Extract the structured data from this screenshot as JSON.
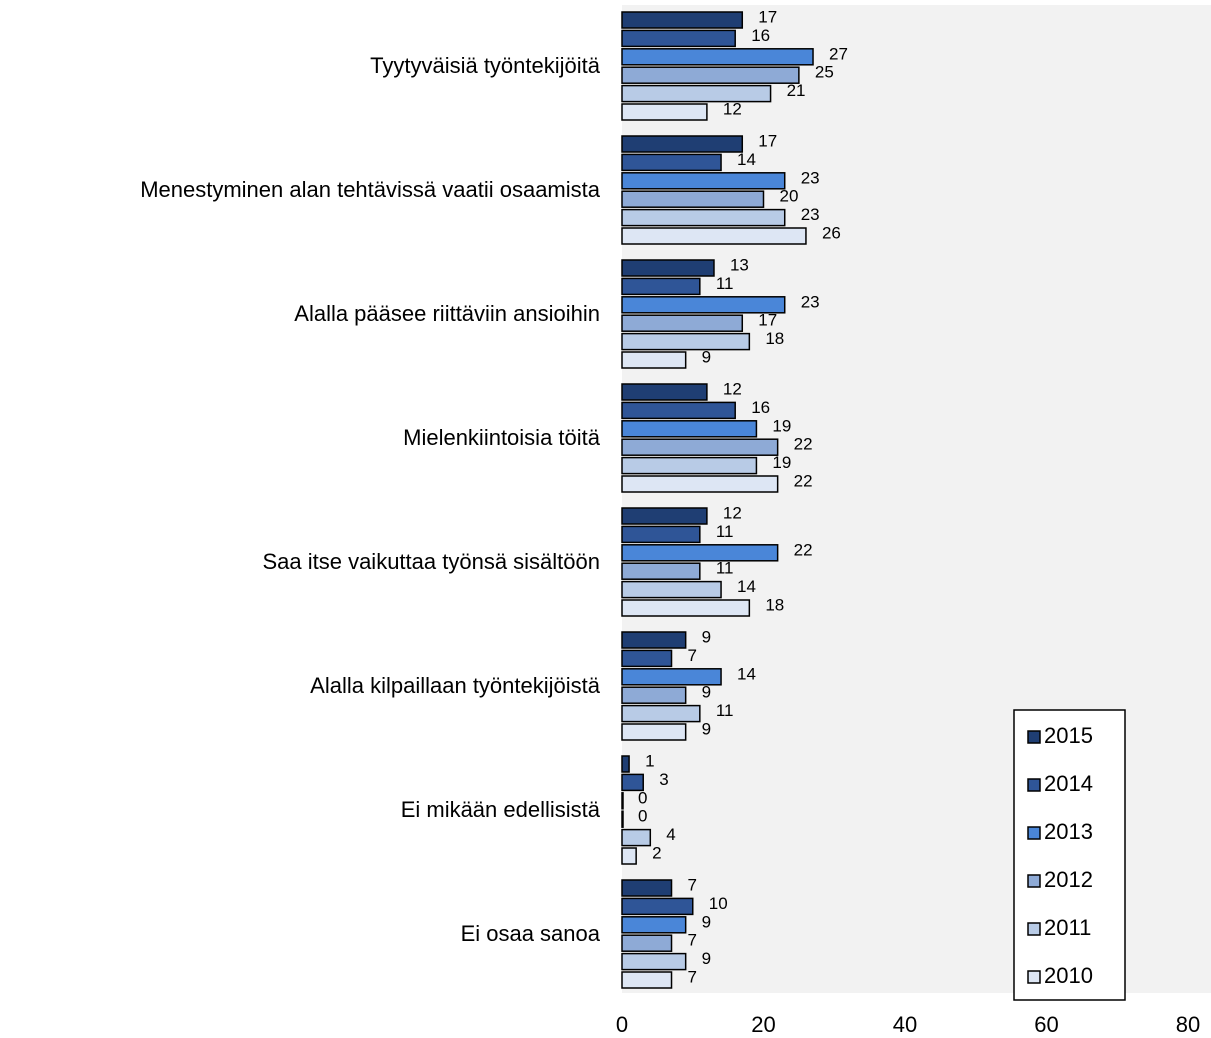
{
  "chart_data": {
    "type": "bar",
    "orientation": "horizontal",
    "categories": [
      "Tyytyväisiä työntekijöitä",
      "Menestyminen alan tehtävissä vaatii osaamista",
      "Alalla pääsee riittäviin ansioihin",
      "Mielenkiintoisia töitä",
      "Saa itse vaikuttaa työnsä sisältöön",
      "Alalla kilpaillaan työntekijöistä",
      "Ei mikään edellisistä",
      "Ei osaa sanoa"
    ],
    "series": [
      {
        "name": "2015",
        "color": "#1f3e73",
        "values": [
          17,
          17,
          13,
          12,
          12,
          9,
          1,
          7
        ]
      },
      {
        "name": "2014",
        "color": "#2f5597",
        "values": [
          16,
          14,
          11,
          16,
          11,
          7,
          3,
          10
        ]
      },
      {
        "name": "2013",
        "color": "#4a86d8",
        "values": [
          27,
          23,
          23,
          19,
          22,
          14,
          0,
          9
        ]
      },
      {
        "name": "2012",
        "color": "#8eaad6",
        "values": [
          25,
          20,
          17,
          22,
          11,
          9,
          0,
          7
        ]
      },
      {
        "name": "2011",
        "color": "#b8cbe6",
        "values": [
          21,
          23,
          18,
          19,
          14,
          11,
          4,
          9
        ]
      },
      {
        "name": "2010",
        "color": "#dde6f4",
        "values": [
          12,
          26,
          9,
          22,
          18,
          9,
          2,
          7
        ]
      }
    ],
    "xlim": [
      0,
      80
    ],
    "xticks": [
      0,
      20,
      40,
      60,
      80
    ],
    "legend": "lower right"
  }
}
